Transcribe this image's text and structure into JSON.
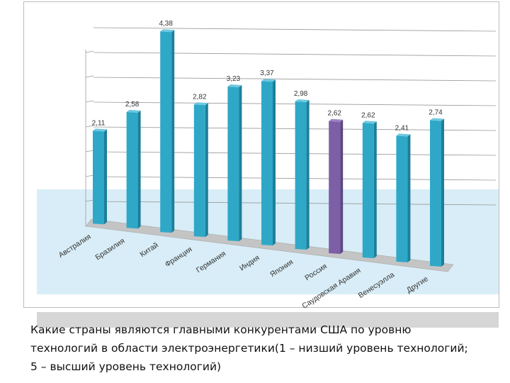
{
  "chart_data": {
    "type": "bar",
    "categories": [
      "Австралия",
      "Бразилия",
      "Китай",
      "Франция",
      "Германия",
      "Индия",
      "Япония",
      "Россия",
      "Саудовская Аравия",
      "Венесуэлла",
      "Другие"
    ],
    "values": [
      2.11,
      2.58,
      4.38,
      2.82,
      3.23,
      3.37,
      2.98,
      2.62,
      2.62,
      2.41,
      2.74
    ],
    "value_labels": [
      "2,11",
      "2,58",
      "4,38",
      "2,82",
      "3,23",
      "3,37",
      "2,98",
      "2,62",
      "2,62",
      "2,41",
      "2,74"
    ],
    "ylim": [
      0,
      5
    ],
    "grid": true,
    "highlight_index": 7,
    "colors": {
      "bar": "#2fa8c8",
      "bar_highlight": "#7c5fa6",
      "grid": "#9a9a9a",
      "band": "#d8edf7"
    }
  },
  "caption": {
    "line1": "Какие страны являются главными конкурентами США по уровню",
    "line2": "технологий в области электроэнергетики(1 – низший уровень технологий;",
    "line3": "5 – высший уровень технологий)"
  }
}
